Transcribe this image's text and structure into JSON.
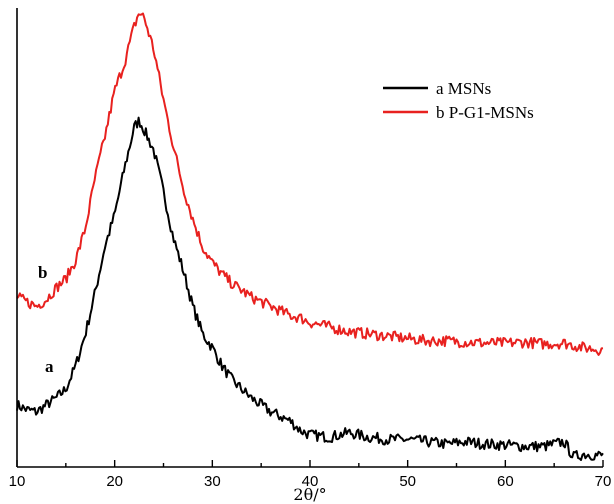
{
  "chart_data": {
    "type": "line",
    "title": "",
    "xlabel": "2θ/°",
    "ylabel": "",
    "xlim": [
      10,
      70
    ],
    "ylim": [
      0,
      100
    ],
    "x_ticks": [
      "10",
      "20",
      "30",
      "40",
      "50",
      "60",
      "70"
    ],
    "y_ticks_shown": false,
    "grid": false,
    "legend_position": "top-right",
    "series": [
      {
        "name": "a MSNs",
        "curve_label": "a",
        "color": "#000000",
        "points": [
          [
            10,
            13.5
          ],
          [
            11,
            12.5
          ],
          [
            12,
            12.0
          ],
          [
            13,
            13.5
          ],
          [
            14,
            15.0
          ],
          [
            15,
            17.0
          ],
          [
            16,
            22.0
          ],
          [
            17,
            29.0
          ],
          [
            18,
            38.0
          ],
          [
            19,
            48.0
          ],
          [
            20,
            55.0
          ],
          [
            21,
            65.0
          ],
          [
            22,
            74.0
          ],
          [
            22.5,
            75.5
          ],
          [
            23,
            73.5
          ],
          [
            24,
            69.0
          ],
          [
            25,
            60.0
          ],
          [
            26,
            50.0
          ],
          [
            27,
            43.0
          ],
          [
            28,
            35.0
          ],
          [
            29,
            29.0
          ],
          [
            30,
            26.0
          ],
          [
            31,
            22.0
          ],
          [
            32,
            19.0
          ],
          [
            33,
            17.0
          ],
          [
            34,
            15.0
          ],
          [
            35,
            13.5
          ],
          [
            36,
            12.0
          ],
          [
            37,
            11.0
          ],
          [
            38,
            10.0
          ],
          [
            39,
            8.0
          ],
          [
            40,
            7.0
          ],
          [
            42,
            6.5
          ],
          [
            44,
            7.5
          ],
          [
            46,
            6.5
          ],
          [
            48,
            6.0
          ],
          [
            50,
            6.0
          ],
          [
            52,
            5.5
          ],
          [
            54,
            5.0
          ],
          [
            56,
            5.5
          ],
          [
            58,
            5.0
          ],
          [
            60,
            4.8
          ],
          [
            62,
            4.5
          ],
          [
            64,
            4.5
          ],
          [
            66,
            5.5
          ],
          [
            67,
            2.2
          ],
          [
            68,
            2.8
          ],
          [
            70,
            2.5
          ]
        ]
      },
      {
        "name": "b P-G1-MSNs",
        "curve_label": "b",
        "color": "#e8211f",
        "points": [
          [
            10,
            37.0
          ],
          [
            11,
            36.0
          ],
          [
            12,
            35.0
          ],
          [
            13,
            36.5
          ],
          [
            14,
            39.0
          ],
          [
            15,
            41.0
          ],
          [
            16,
            45.0
          ],
          [
            17,
            52.0
          ],
          [
            18,
            63.0
          ],
          [
            19,
            72.0
          ],
          [
            20,
            82.0
          ],
          [
            21,
            88.0
          ],
          [
            22,
            96.0
          ],
          [
            22.5,
            99.0
          ],
          [
            23,
            98.0
          ],
          [
            24,
            91.0
          ],
          [
            25,
            80.0
          ],
          [
            26,
            70.0
          ],
          [
            27,
            61.0
          ],
          [
            28,
            54.0
          ],
          [
            29,
            48.0
          ],
          [
            30,
            44.5
          ],
          [
            31,
            42.0
          ],
          [
            32,
            40.0
          ],
          [
            33,
            38.5
          ],
          [
            34,
            37.0
          ],
          [
            35,
            36.0
          ],
          [
            36,
            35.0
          ],
          [
            37,
            34.0
          ],
          [
            38,
            33.0
          ],
          [
            39,
            32.5
          ],
          [
            40,
            31.5
          ],
          [
            42,
            30.5
          ],
          [
            44,
            29.5
          ],
          [
            46,
            29.0
          ],
          [
            48,
            28.5
          ],
          [
            50,
            28.0
          ],
          [
            52,
            27.5
          ],
          [
            54,
            27.5
          ],
          [
            56,
            27.2
          ],
          [
            58,
            27.0
          ],
          [
            60,
            27.0
          ],
          [
            62,
            27.2
          ],
          [
            64,
            26.8
          ],
          [
            66,
            27.0
          ],
          [
            68,
            26.0
          ],
          [
            70,
            25.5
          ]
        ]
      }
    ]
  }
}
